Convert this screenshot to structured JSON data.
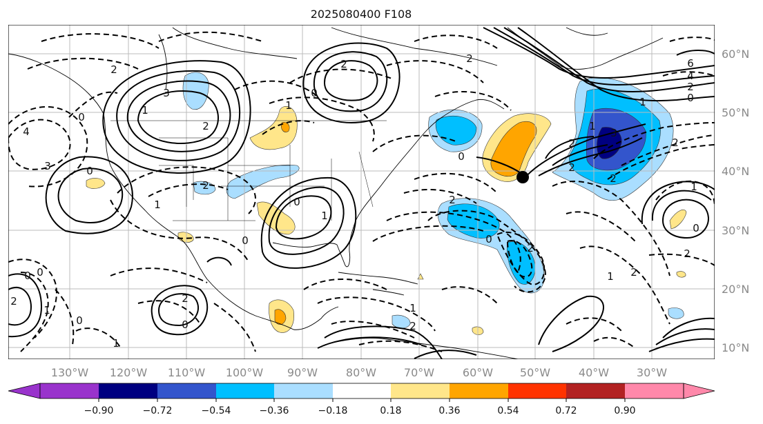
{
  "title": "2025080400 F108",
  "latitude_labels": [
    "60°N",
    "50°N",
    "40°N",
    "30°N",
    "20°N",
    "10°N"
  ],
  "longitude_labels": [
    "130°W",
    "120°W",
    "110°W",
    "100°W",
    "90°W",
    "80°W",
    "70°W",
    "60°W",
    "50°W",
    "40°W",
    "30°W"
  ],
  "colorbar": {
    "ticks": [
      "−0.90",
      "−0.72",
      "−0.54",
      "−0.36",
      "−0.18",
      "0.18",
      "0.36",
      "0.54",
      "0.72",
      "0.90"
    ],
    "colors": [
      "#9933cc",
      "#000080",
      "#3355cc",
      "#00bfff",
      "#aadeff",
      "#ffffff",
      "#ffe68a",
      "#ffa500",
      "#ff3300",
      "#b22222",
      "#ff88aa"
    ]
  },
  "contour_labels": [
    "2",
    "1",
    "0",
    "2",
    "3",
    "4",
    "3",
    "2",
    "1",
    "0",
    "2",
    "6",
    "4",
    "2",
    "0",
    "1",
    "2",
    "2",
    "2",
    "0",
    "1",
    "2",
    "0",
    "2",
    "3",
    "0",
    "1",
    "2",
    "0",
    "0",
    "1",
    "1",
    "2",
    "2",
    "1",
    "0",
    "2",
    "1",
    "2",
    "0",
    "0",
    "1",
    "2",
    "0",
    "1",
    "2",
    "0"
  ]
}
